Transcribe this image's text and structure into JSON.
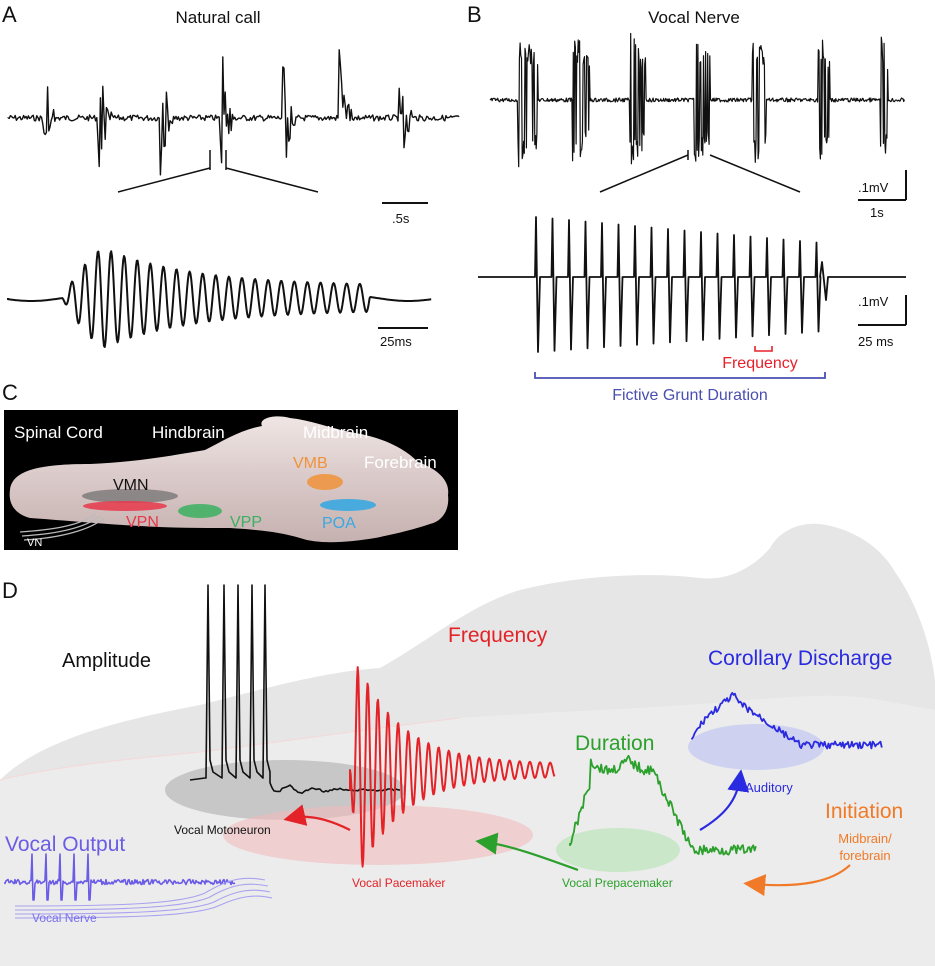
{
  "panels": {
    "a": {
      "letter": "A",
      "title": "Natural call",
      "scale_top": ".5s",
      "scale_bottom": "25ms"
    },
    "b": {
      "letter": "B",
      "title": "Vocal Nerve",
      "scale_top_v": ".1mV",
      "scale_top_t": "1s",
      "scale_bottom_v": ".1mV",
      "scale_bottom_t": "25 ms",
      "frequency_label": "Frequency",
      "duration_label": "Fictive Grunt Duration"
    },
    "c": {
      "letter": "C",
      "regions": [
        "Spinal Cord",
        "Hindbrain",
        "Midbrain",
        "Forebrain"
      ],
      "nuclei": {
        "vmn": "VMN",
        "vpn": "VPN",
        "vpp": "VPP",
        "vmb": "VMB",
        "poa": "POA",
        "vn": "VN"
      }
    },
    "d": {
      "letter": "D",
      "amplitude": "Amplitude",
      "frequency": "Frequency",
      "corollary": "Corollary Discharge",
      "duration": "Duration",
      "initiation": "Initiation",
      "midbrain_forebrain_1": "Midbrain/",
      "midbrain_forebrain_2": "forebrain",
      "auditory": "Auditory",
      "vocal_output": "Vocal Output",
      "vocal_nerve": "Vocal Nerve",
      "vocal_motoneuron": "Vocal Motoneuron",
      "vocal_pacemaker": "Vocal Pacemaker",
      "vocal_prepacemaker": "Vocal Prepacemaker"
    }
  },
  "colors": {
    "black_trace": "#111111",
    "frequency_red": "#e8202a",
    "duration_blue": "#4a4fb0",
    "amplitude_black": "#111111",
    "pacemaker_red": "#e32328",
    "prepacemaker_green": "#2ca02c",
    "corollary_blue": "#2a2ae0",
    "initiation_orange": "#f07a28",
    "vocal_output_purple": "#6b5ce6",
    "vmb_orange": "#f0923a",
    "poa_cyan": "#3aa8e0",
    "vpp_green": "#3bb060",
    "vpn_red": "#e8384a"
  }
}
